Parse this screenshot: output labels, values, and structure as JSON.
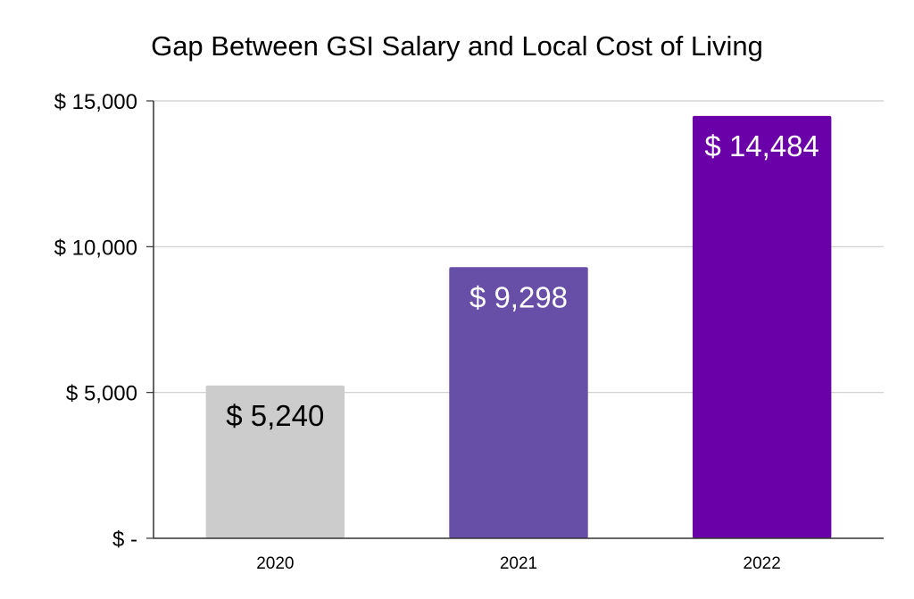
{
  "chart_data": {
    "type": "bar",
    "title": "Gap Between GSI Salary and Local Cost of Living",
    "categories": [
      "2020",
      "2021",
      "2022"
    ],
    "values": [
      5240,
      9298,
      14484
    ],
    "value_labels": [
      "$ 5,240",
      "$ 9,298",
      "$ 14,484"
    ],
    "bar_colors": [
      "#cccccc",
      "#674ea7",
      "#6a00a8"
    ],
    "value_label_colors": [
      "#000000",
      "#ffffff",
      "#ffffff"
    ],
    "ylim": [
      0,
      15000
    ],
    "yticks": [
      0,
      5000,
      10000,
      15000
    ],
    "ytick_labels": [
      "$ -",
      "$ 5,000",
      "$ 10,000",
      "$ 15,000"
    ],
    "grid": true,
    "gridline_color": "#cccccc",
    "xlabel": "",
    "ylabel": ""
  }
}
